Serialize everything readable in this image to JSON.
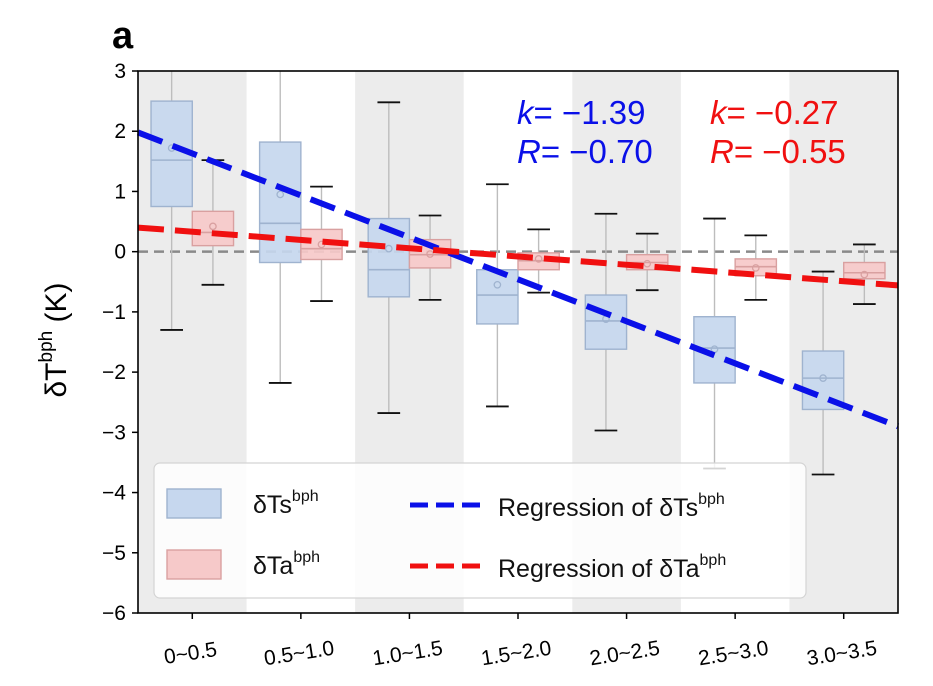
{
  "panel_label": "a",
  "colors": {
    "ts_fill": "#c6d7ee",
    "ts_edge": "#9fb3cf",
    "ta_fill": "#f6c9c9",
    "ta_edge": "#d9a0a0",
    "ts_line": "#0a10e8",
    "ta_line": "#f01010",
    "band": "#ececec",
    "whisker": "#bdbdbd",
    "zero_line": "#8a8a8a"
  },
  "stats": {
    "ts": {
      "k_sym": "k",
      "k_val": "= −1.39",
      "r_sym": "R",
      "r_val": "= −0.70"
    },
    "ta": {
      "k_sym": "k",
      "k_val": "= −0.27",
      "r_sym": "R",
      "r_val": "= −0.55"
    }
  },
  "legend": {
    "ts_box": {
      "base": "δTs",
      "sup": "bph"
    },
    "ta_box": {
      "base": "δTa",
      "sup": "bph"
    },
    "ts_reg": {
      "base": "Regression of δTs",
      "sup": "bph"
    },
    "ta_reg": {
      "base": "Regression of δTa",
      "sup": "bph"
    }
  },
  "chart_data": {
    "type": "box",
    "title": "",
    "ylabel": {
      "base": "δT",
      "sup": "bph",
      "unit": " (K)"
    },
    "xlabel": "",
    "ylim": [
      -6,
      3
    ],
    "yticks": [
      3,
      2,
      1,
      0,
      -1,
      -2,
      -3,
      -4,
      -5,
      -6
    ],
    "yticklabels": [
      "3",
      "2",
      "1",
      "0",
      "−1",
      "−2",
      "−3",
      "−4",
      "−5",
      "−6"
    ],
    "categories": [
      "0~0.5",
      "0.5~1.0",
      "1.0~1.5",
      "1.5~2.0",
      "2.0~2.5",
      "2.5~3.0",
      "3.0~3.5"
    ],
    "series": [
      {
        "name": "δTs bph",
        "boxes": [
          {
            "whislo": -1.3,
            "q1": 0.75,
            "med": 1.52,
            "q3": 2.5,
            "whishi": 3.0,
            "mean": 1.72
          },
          {
            "whislo": -2.18,
            "q1": -0.18,
            "med": 0.47,
            "q3": 1.82,
            "whishi": 3.0,
            "mean": 0.95
          },
          {
            "whislo": -2.68,
            "q1": -0.75,
            "med": -0.3,
            "q3": 0.55,
            "whishi": 2.48,
            "mean": 0.05
          },
          {
            "whislo": -2.57,
            "q1": -1.2,
            "med": -0.72,
            "q3": -0.3,
            "whishi": 1.12,
            "mean": -0.55
          },
          {
            "whislo": -2.97,
            "q1": -1.62,
            "med": -1.15,
            "q3": -0.72,
            "whishi": 0.63,
            "mean": -1.12
          },
          {
            "whislo": -3.6,
            "q1": -2.18,
            "med": -1.6,
            "q3": -1.08,
            "whishi": 0.55,
            "mean": -1.62
          },
          {
            "whislo": -3.7,
            "q1": -2.62,
            "med": -2.1,
            "q3": -1.65,
            "whishi": -0.33,
            "mean": -2.1
          }
        ]
      },
      {
        "name": "δTa bph",
        "boxes": [
          {
            "whislo": -0.55,
            "q1": 0.1,
            "med": 0.32,
            "q3": 0.67,
            "whishi": 1.52,
            "mean": 0.42
          },
          {
            "whislo": -0.82,
            "q1": -0.13,
            "med": 0.05,
            "q3": 0.37,
            "whishi": 1.08,
            "mean": 0.12
          },
          {
            "whislo": -0.8,
            "q1": -0.27,
            "med": -0.05,
            "q3": 0.2,
            "whishi": 0.6,
            "mean": -0.04
          },
          {
            "whislo": -0.68,
            "q1": -0.3,
            "med": -0.15,
            "q3": -0.02,
            "whishi": 0.37,
            "mean": -0.12
          },
          {
            "whislo": -0.64,
            "q1": -0.3,
            "med": -0.18,
            "q3": -0.05,
            "whishi": 0.3,
            "mean": -0.2
          },
          {
            "whislo": -0.8,
            "q1": -0.4,
            "med": -0.25,
            "q3": -0.12,
            "whishi": 0.27,
            "mean": -0.27
          },
          {
            "whislo": -0.87,
            "q1": -0.45,
            "med": -0.35,
            "q3": -0.18,
            "whishi": 0.12,
            "mean": -0.38
          }
        ]
      }
    ],
    "regressions": [
      {
        "name": "Regression of δTs bph",
        "x0": -0.5,
        "y0": 1.98,
        "x1": 6.5,
        "y1": -2.9
      },
      {
        "name": "Regression of δTa bph",
        "x0": -0.5,
        "y0": 0.4,
        "x1": 6.5,
        "y1": -0.56
      }
    ],
    "reference_line": 0,
    "legend_position": "bottom-left"
  }
}
